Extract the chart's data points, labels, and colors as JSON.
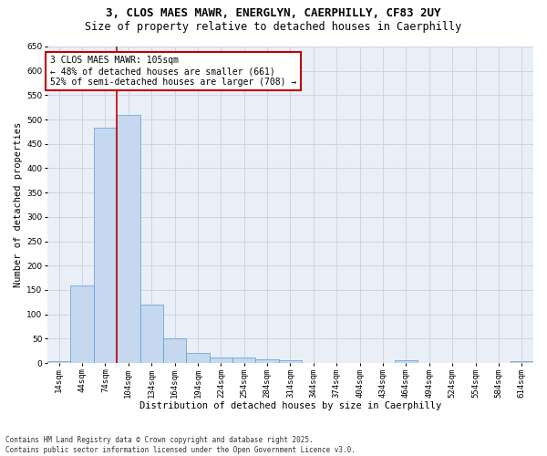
{
  "title_line1": "3, CLOS MAES MAWR, ENERGLYN, CAERPHILLY, CF83 2UY",
  "title_line2": "Size of property relative to detached houses in Caerphilly",
  "xlabel": "Distribution of detached houses by size in Caerphilly",
  "ylabel": "Number of detached properties",
  "bin_labels": [
    "14sqm",
    "44sqm",
    "74sqm",
    "104sqm",
    "134sqm",
    "164sqm",
    "194sqm",
    "224sqm",
    "254sqm",
    "284sqm",
    "314sqm",
    "344sqm",
    "374sqm",
    "404sqm",
    "434sqm",
    "464sqm",
    "494sqm",
    "524sqm",
    "554sqm",
    "584sqm",
    "614sqm"
  ],
  "bar_values": [
    3,
    160,
    483,
    510,
    120,
    50,
    20,
    12,
    11,
    8,
    6,
    0,
    0,
    0,
    0,
    5,
    0,
    0,
    0,
    0,
    3
  ],
  "bar_color": "#c5d8f0",
  "bar_edge_color": "#5b9bd5",
  "vline_index": 3,
  "vline_color": "#c00000",
  "annotation_box_text": "3 CLOS MAES MAWR: 105sqm\n← 48% of detached houses are smaller (661)\n52% of semi-detached houses are larger (708) →",
  "annotation_box_color": "#c00000",
  "ylim": [
    0,
    650
  ],
  "yticks": [
    0,
    50,
    100,
    150,
    200,
    250,
    300,
    350,
    400,
    450,
    500,
    550,
    600,
    650
  ],
  "grid_color": "#cdd5e3",
  "background_color": "#eaeff7",
  "footer_text": "Contains HM Land Registry data © Crown copyright and database right 2025.\nContains public sector information licensed under the Open Government Licence v3.0.",
  "title_fontsize": 9,
  "subtitle_fontsize": 8.5,
  "axis_label_fontsize": 7.5,
  "tick_fontsize": 6.5,
  "annotation_fontsize": 7,
  "footer_fontsize": 5.5
}
